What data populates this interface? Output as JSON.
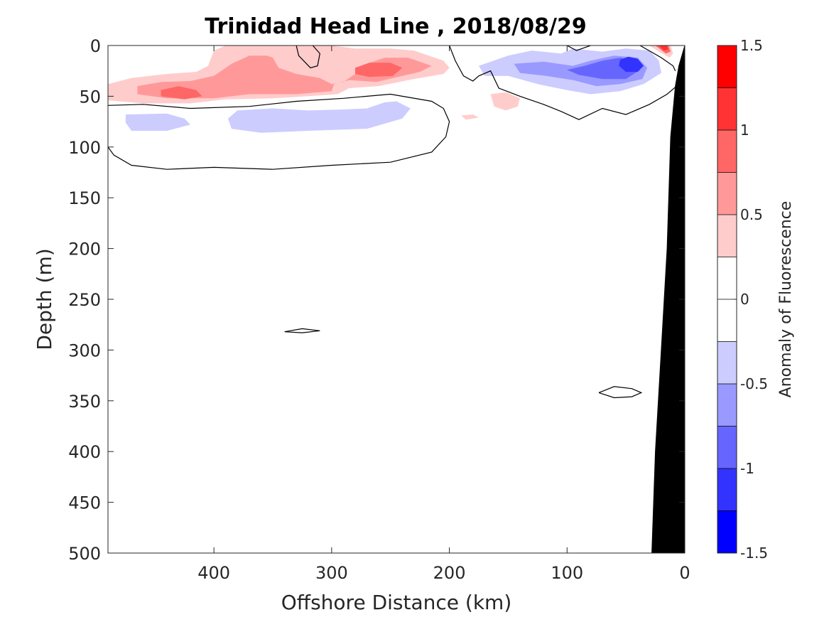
{
  "chart_data": {
    "type": "heatmap",
    "title": "Trinidad Head Line , 2018/08/29",
    "xlabel": "Offshore Distance (km)",
    "ylabel": "Depth (m)",
    "x_range": [
      490,
      0
    ],
    "x_reversed": true,
    "y_range": [
      0,
      500
    ],
    "y_reversed": true,
    "x_ticks": [
      400,
      300,
      200,
      100,
      0
    ],
    "y_ticks": [
      0,
      50,
      100,
      150,
      200,
      250,
      300,
      350,
      400,
      450,
      500
    ],
    "colorbar": {
      "label": "Anomaly of Fluorescence",
      "range": [
        -1.5,
        1.5
      ],
      "ticks": [
        -1.5,
        -1,
        -0.5,
        0,
        0.5,
        1,
        1.5
      ],
      "tick_labels": [
        "-1.5",
        "-1",
        "-0.5",
        "0",
        "0.5",
        "1",
        "1.5"
      ],
      "levels": [
        {
          "from": -1.5,
          "to": -1.25,
          "color": "#0000ff"
        },
        {
          "from": -1.25,
          "to": -1.0,
          "color": "#3333ff"
        },
        {
          "from": -1.0,
          "to": -0.75,
          "color": "#6666ff"
        },
        {
          "from": -0.75,
          "to": -0.5,
          "color": "#9999ff"
        },
        {
          "from": -0.5,
          "to": -0.25,
          "color": "#ccccff"
        },
        {
          "from": -0.25,
          "to": 0.0,
          "color": "#ffffff"
        },
        {
          "from": 0.0,
          "to": 0.25,
          "color": "#ffffff"
        },
        {
          "from": 0.25,
          "to": 0.5,
          "color": "#ffcccc"
        },
        {
          "from": 0.5,
          "to": 0.75,
          "color": "#ff9999"
        },
        {
          "from": 0.75,
          "to": 1.0,
          "color": "#ff6666"
        },
        {
          "from": 1.0,
          "to": 1.25,
          "color": "#ff3333"
        },
        {
          "from": 1.25,
          "to": 1.5,
          "color": "#ff0000"
        }
      ]
    },
    "anomaly_regions": [
      {
        "level": 0.375,
        "polygon": [
          [
            490,
            38
          ],
          [
            470,
            32
          ],
          [
            440,
            28
          ],
          [
            415,
            26
          ],
          [
            405,
            20
          ],
          [
            400,
            5
          ],
          [
            390,
            0
          ],
          [
            300,
            0
          ],
          [
            280,
            3
          ],
          [
            250,
            3
          ],
          [
            230,
            5
          ],
          [
            205,
            15
          ],
          [
            200,
            22
          ],
          [
            205,
            28
          ],
          [
            230,
            33
          ],
          [
            260,
            40
          ],
          [
            285,
            42
          ],
          [
            295,
            48
          ],
          [
            320,
            50
          ],
          [
            350,
            52
          ],
          [
            390,
            53
          ],
          [
            420,
            57
          ],
          [
            460,
            57
          ],
          [
            490,
            54
          ]
        ]
      },
      {
        "level": 0.625,
        "polygon": [
          [
            465,
            40
          ],
          [
            445,
            36
          ],
          [
            420,
            35
          ],
          [
            400,
            30
          ],
          [
            385,
            18
          ],
          [
            370,
            10
          ],
          [
            355,
            10
          ],
          [
            350,
            12
          ],
          [
            345,
            22
          ],
          [
            330,
            28
          ],
          [
            310,
            32
          ],
          [
            300,
            38
          ],
          [
            290,
            36
          ],
          [
            280,
            28
          ],
          [
            270,
            18
          ],
          [
            255,
            12
          ],
          [
            235,
            12
          ],
          [
            215,
            20
          ],
          [
            225,
            26
          ],
          [
            240,
            30
          ],
          [
            262,
            36
          ],
          [
            285,
            34
          ],
          [
            298,
            38
          ],
          [
            300,
            45
          ],
          [
            330,
            48
          ],
          [
            370,
            48
          ],
          [
            400,
            52
          ],
          [
            440,
            52
          ],
          [
            465,
            48
          ]
        ]
      },
      {
        "level": 0.875,
        "polygon": [
          [
            445,
            44
          ],
          [
            430,
            40
          ],
          [
            415,
            44
          ],
          [
            410,
            50
          ],
          [
            425,
            53
          ],
          [
            445,
            50
          ]
        ]
      },
      {
        "level": 0.875,
        "polygon": [
          [
            280,
            22
          ],
          [
            268,
            17
          ],
          [
            250,
            17
          ],
          [
            240,
            22
          ],
          [
            248,
            30
          ],
          [
            268,
            31
          ],
          [
            280,
            28
          ]
        ]
      },
      {
        "level": 0.375,
        "polygon": [
          [
            165,
            48
          ],
          [
            152,
            46
          ],
          [
            140,
            52
          ],
          [
            142,
            60
          ],
          [
            152,
            64
          ],
          [
            162,
            60
          ]
        ]
      },
      {
        "level": 0.375,
        "polygon": [
          [
            190,
            69
          ],
          [
            180,
            68
          ],
          [
            175,
            71
          ],
          [
            186,
            73
          ]
        ]
      },
      {
        "level": -0.375,
        "polygon": [
          [
            475,
            68
          ],
          [
            440,
            67
          ],
          [
            425,
            72
          ],
          [
            420,
            78
          ],
          [
            440,
            84
          ],
          [
            470,
            84
          ],
          [
            475,
            76
          ]
        ]
      },
      {
        "level": -0.375,
        "polygon": [
          [
            380,
            64
          ],
          [
            350,
            62
          ],
          [
            320,
            64
          ],
          [
            290,
            63
          ],
          [
            270,
            62
          ],
          [
            255,
            56
          ],
          [
            245,
            55
          ],
          [
            233,
            62
          ],
          [
            240,
            72
          ],
          [
            270,
            82
          ],
          [
            320,
            84
          ],
          [
            360,
            86
          ],
          [
            385,
            82
          ],
          [
            388,
            72
          ]
        ]
      },
      {
        "level": -0.375,
        "polygon": [
          [
            175,
            20
          ],
          [
            150,
            10
          ],
          [
            130,
            5
          ],
          [
            105,
            8
          ],
          [
            95,
            3
          ],
          [
            70,
            6
          ],
          [
            50,
            3
          ],
          [
            30,
            5
          ],
          [
            22,
            15
          ],
          [
            20,
            27
          ],
          [
            35,
            38
          ],
          [
            55,
            45
          ],
          [
            80,
            48
          ],
          [
            100,
            44
          ],
          [
            125,
            38
          ],
          [
            150,
            30
          ],
          [
            170,
            30
          ]
        ]
      },
      {
        "level": -0.625,
        "polygon": [
          [
            145,
            18
          ],
          [
            120,
            16
          ],
          [
            95,
            20
          ],
          [
            80,
            15
          ],
          [
            60,
            10
          ],
          [
            40,
            12
          ],
          [
            32,
            22
          ],
          [
            36,
            33
          ],
          [
            55,
            38
          ],
          [
            75,
            40
          ],
          [
            95,
            34
          ],
          [
            118,
            30
          ],
          [
            140,
            27
          ]
        ]
      },
      {
        "level": -0.875,
        "polygon": [
          [
            100,
            24
          ],
          [
            85,
            20
          ],
          [
            70,
            15
          ],
          [
            55,
            12
          ],
          [
            42,
            15
          ],
          [
            38,
            24
          ],
          [
            50,
            33
          ],
          [
            70,
            33
          ],
          [
            90,
            29
          ]
        ]
      },
      {
        "level": -1.125,
        "polygon": [
          [
            55,
            14
          ],
          [
            48,
            11
          ],
          [
            40,
            13
          ],
          [
            35,
            20
          ],
          [
            40,
            26
          ],
          [
            50,
            26
          ],
          [
            56,
            20
          ]
        ]
      },
      {
        "level": 0.375,
        "polygon": [
          [
            30,
            0
          ],
          [
            12,
            0
          ],
          [
            10,
            8
          ],
          [
            13,
            12
          ],
          [
            22,
            6
          ]
        ]
      },
      {
        "level": 0.875,
        "polygon": [
          [
            25,
            0
          ],
          [
            14,
            0
          ],
          [
            12,
            6
          ],
          [
            16,
            8
          ]
        ]
      },
      {
        "level": 1.125,
        "polygon": [
          [
            22,
            0
          ],
          [
            15,
            0
          ],
          [
            14,
            4
          ],
          [
            18,
            5
          ]
        ]
      }
    ],
    "zero_contours": [
      [
        [
          490,
          59
        ],
        [
          460,
          58
        ],
        [
          420,
          62
        ],
        [
          370,
          60
        ],
        [
          330,
          55
        ],
        [
          290,
          52
        ],
        [
          250,
          48
        ],
        [
          215,
          55
        ],
        [
          205,
          62
        ],
        [
          200,
          75
        ],
        [
          203,
          90
        ],
        [
          215,
          105
        ],
        [
          250,
          115
        ],
        [
          300,
          118
        ],
        [
          350,
          122
        ],
        [
          400,
          120
        ],
        [
          440,
          122
        ],
        [
          470,
          118
        ],
        [
          485,
          108
        ],
        [
          490,
          100
        ]
      ],
      [
        [
          330,
          0
        ],
        [
          328,
          10
        ],
        [
          318,
          22
        ],
        [
          312,
          20
        ],
        [
          310,
          8
        ],
        [
          316,
          0
        ]
      ],
      [
        [
          200,
          0
        ],
        [
          195,
          15
        ],
        [
          188,
          30
        ],
        [
          180,
          35
        ],
        [
          175,
          30
        ],
        [
          165,
          25
        ],
        [
          158,
          42
        ],
        [
          140,
          50
        ],
        [
          120,
          58
        ],
        [
          105,
          65
        ],
        [
          90,
          73
        ],
        [
          70,
          62
        ],
        [
          50,
          68
        ],
        [
          30,
          58
        ],
        [
          15,
          48
        ],
        [
          5,
          38
        ]
      ],
      [
        [
          100,
          0
        ],
        [
          92,
          5
        ],
        [
          85,
          2
        ],
        [
          80,
          0
        ]
      ],
      [
        [
          38,
          0
        ],
        [
          20,
          12
        ],
        [
          10,
          20
        ],
        [
          8,
          25
        ]
      ],
      [
        [
          340,
          282
        ],
        [
          325,
          279
        ],
        [
          310,
          281
        ],
        [
          325,
          283
        ],
        [
          340,
          282
        ]
      ],
      [
        [
          73,
          342
        ],
        [
          60,
          336
        ],
        [
          45,
          338
        ],
        [
          37,
          342
        ],
        [
          45,
          346
        ],
        [
          60,
          347
        ],
        [
          73,
          342
        ]
      ]
    ],
    "bathymetry": [
      [
        0,
        0
      ],
      [
        5,
        20
      ],
      [
        8,
        40
      ],
      [
        12,
        90
      ],
      [
        15,
        200
      ],
      [
        20,
        300
      ],
      [
        25,
        400
      ],
      [
        28,
        500
      ],
      [
        0,
        500
      ]
    ],
    "grid": false,
    "colormap": "blue-white-red"
  }
}
